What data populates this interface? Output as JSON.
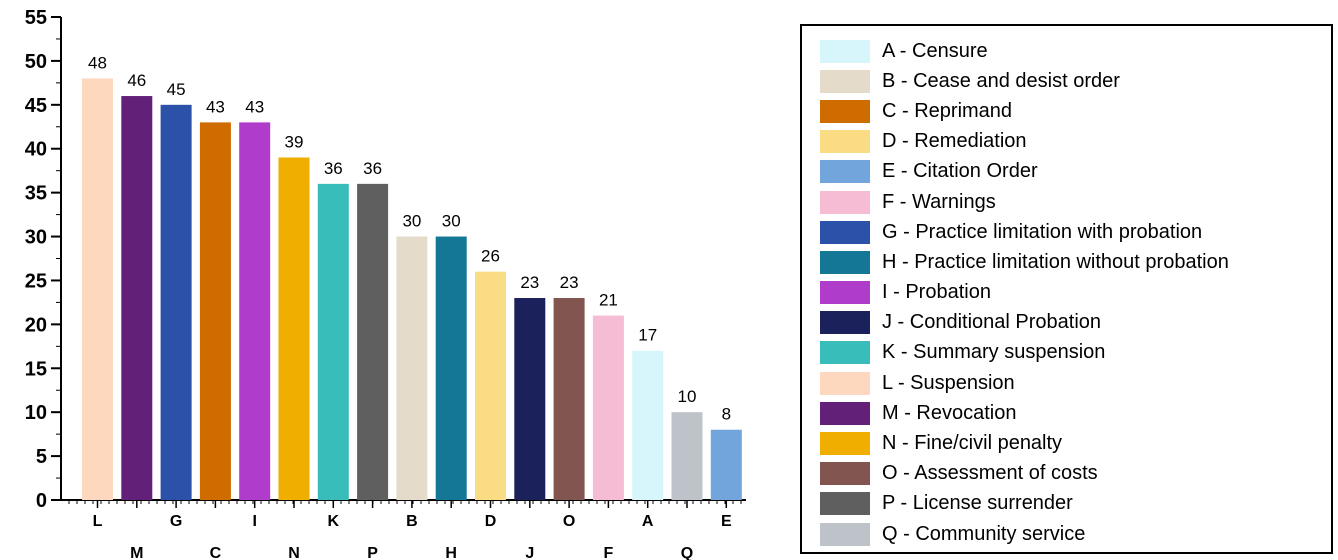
{
  "chart_data": {
    "type": "bar",
    "title": "",
    "xlabel": "",
    "ylabel": "",
    "ylim": [
      0,
      55
    ],
    "yticks": [
      "0",
      "5",
      "10",
      "15",
      "20",
      "25",
      "30",
      "35",
      "40",
      "45",
      "50",
      "55"
    ],
    "categories": [
      "L",
      "M",
      "G",
      "C",
      "I",
      "N",
      "K",
      "P",
      "B",
      "H",
      "D",
      "J",
      "O",
      "F",
      "A",
      "Q",
      "E"
    ],
    "values": [
      48,
      46,
      45,
      43,
      43,
      39,
      36,
      36,
      30,
      30,
      26,
      23,
      23,
      21,
      17,
      10,
      8
    ],
    "data_labels": [
      "48",
      "46",
      "45",
      "43",
      "43",
      "39",
      "36",
      "36",
      "30",
      "30",
      "26",
      "23",
      "23",
      "21",
      "17",
      "10",
      "8"
    ],
    "colors": [
      "#FDD7BE",
      "#632079",
      "#2B51A8",
      "#CE6C00",
      "#AF3CCB",
      "#F0AE00",
      "#38BDBA",
      "#5F5F5F",
      "#E4DBCB",
      "#147796",
      "#F9DC84",
      "#1B215A",
      "#835550",
      "#F5BCD4",
      "#D7F6FB",
      "#BEC3CA",
      "#71A5DC"
    ],
    "grid": false,
    "legend_position": "right",
    "legend": [
      {
        "key": "A",
        "label": "A - Censure",
        "color": "#D7F6FB"
      },
      {
        "key": "B",
        "label": "B - Cease and desist order",
        "color": "#E4DBCB"
      },
      {
        "key": "C",
        "label": "C - Reprimand",
        "color": "#CE6C00"
      },
      {
        "key": "D",
        "label": "D - Remediation",
        "color": "#F9DC84"
      },
      {
        "key": "E",
        "label": "E - Citation Order",
        "color": "#71A5DC"
      },
      {
        "key": "F",
        "label": "F - Warnings",
        "color": "#F5BCD4"
      },
      {
        "key": "G",
        "label": "G - Practice limitation with probation",
        "color": "#2B51A8"
      },
      {
        "key": "H",
        "label": "H - Practice limitation without probation",
        "color": "#147796"
      },
      {
        "key": "I",
        "label": "I - Probation",
        "color": "#AF3CCB"
      },
      {
        "key": "J",
        "label": "J - Conditional Probation",
        "color": "#1B215A"
      },
      {
        "key": "K",
        "label": "K - Summary suspension",
        "color": "#38BDBA"
      },
      {
        "key": "L",
        "label": "L - Suspension",
        "color": "#FDD7BE"
      },
      {
        "key": "M",
        "label": "M - Revocation",
        "color": "#632079"
      },
      {
        "key": "N",
        "label": "N - Fine/civil penalty",
        "color": "#F0AE00"
      },
      {
        "key": "O",
        "label": "O - Assessment of costs",
        "color": "#835550"
      },
      {
        "key": "P",
        "label": "P - License surrender",
        "color": "#5F5F5F"
      },
      {
        "key": "Q",
        "label": "Q - Community service",
        "color": "#BEC3CA"
      }
    ]
  }
}
